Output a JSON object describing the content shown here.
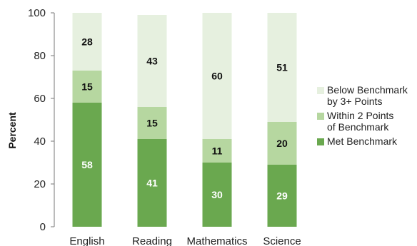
{
  "chart_data": {
    "type": "bar",
    "stacked": true,
    "categories": [
      "English",
      "Reading",
      "Mathematics",
      "Science"
    ],
    "series": [
      {
        "name": "Met Benchmark",
        "values": [
          58,
          41,
          30,
          29
        ],
        "color": "#6aa84f",
        "label_color": "#ffffff"
      },
      {
        "name": "Within 2 Points of Benchmark",
        "values": [
          15,
          15,
          11,
          20
        ],
        "color": "#b6d7a0",
        "label_color": "#111111"
      },
      {
        "name": "Below Benchmark by 3+ Points",
        "values": [
          28,
          43,
          60,
          51
        ],
        "color": "#e6f0df",
        "label_color": "#111111"
      }
    ],
    "legend": [
      {
        "lines": [
          "Below Benchmark",
          "by 3+ Points"
        ],
        "color": "#e6f0df"
      },
      {
        "lines": [
          "Within 2 Points",
          "of Benchmark"
        ],
        "color": "#b6d7a0"
      },
      {
        "lines": [
          "Met Benchmark"
        ],
        "color": "#6aa84f"
      }
    ],
    "ylabel": "Percent",
    "xlabel": "",
    "title": "",
    "ylim": [
      0,
      100
    ],
    "yticks": [
      0,
      20,
      40,
      60,
      80,
      100
    ],
    "grid": false,
    "legend_position": "right"
  }
}
